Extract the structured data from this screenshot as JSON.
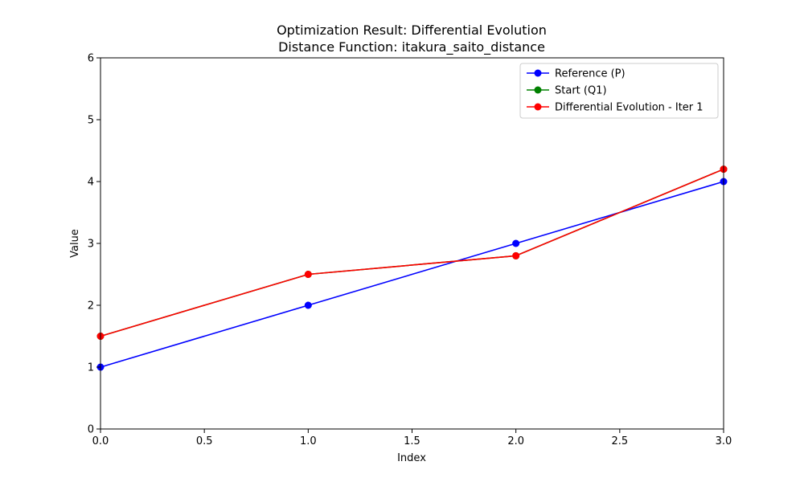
{
  "chart_data": {
    "type": "line",
    "title": "Optimization Result: Differential Evolution",
    "subtitle": "Distance Function: itakura_saito_distance",
    "xlabel": "Index",
    "ylabel": "Value",
    "xlim": [
      0,
      3
    ],
    "ylim": [
      0,
      6
    ],
    "xticks": [
      0.0,
      0.5,
      1.0,
      1.5,
      2.0,
      2.5,
      3.0
    ],
    "xtick_labels": [
      "0.0",
      "0.5",
      "1.0",
      "1.5",
      "2.0",
      "2.5",
      "3.0"
    ],
    "yticks": [
      0,
      1,
      2,
      3,
      4,
      5,
      6
    ],
    "ytick_labels": [
      "0",
      "1",
      "2",
      "3",
      "4",
      "5",
      "6"
    ],
    "grid": false,
    "legend_position": "top-right",
    "x": [
      0,
      1,
      2,
      3
    ],
    "series": [
      {
        "name": "Reference (P)",
        "color": "#0000ff",
        "values": [
          1.0,
          2.0,
          3.0,
          4.0
        ]
      },
      {
        "name": "Start (Q1)",
        "color": "#008000",
        "values": [
          1.5,
          2.5,
          2.8,
          4.2
        ]
      },
      {
        "name": "Differential Evolution - Iter 1",
        "color": "#ff0000",
        "values": [
          1.5,
          2.5,
          2.8,
          4.2
        ]
      }
    ]
  }
}
